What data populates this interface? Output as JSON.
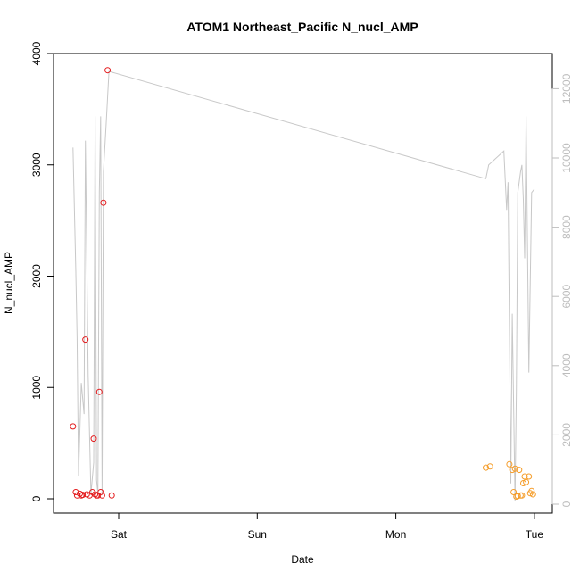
{
  "chart_data": {
    "type": "scatter",
    "title": "ATOM1 Northeast_Pacific N_nucl_AMP",
    "xlabel": "Date",
    "ylabel": "N_nucl_AMP",
    "x_ticks": [
      "Sat",
      "Sun",
      "Mon",
      "Tue"
    ],
    "x_range_days": [
      -0.4,
      3.05
    ],
    "ylim": [
      0,
      4000
    ],
    "y_ticks": [
      "0",
      "1000",
      "2000",
      "3000",
      "4000"
    ],
    "y2lim": [
      0,
      13000
    ],
    "y2_ticks": [
      "0",
      "2000",
      "4000",
      "6000",
      "8000",
      "10000",
      "12000"
    ],
    "colors": {
      "series_red": "#e31a1c",
      "series_orange": "#f59d2a",
      "secondary_line": "#c8c8c8",
      "right_axis": "#bdbdbd"
    },
    "series": [
      {
        "color": "#e31a1c",
        "x": [
          -0.33,
          -0.31,
          -0.3,
          -0.28,
          -0.27,
          -0.26,
          -0.24,
          -0.23,
          -0.21,
          -0.19,
          -0.18,
          -0.17,
          -0.16,
          -0.15,
          -0.14,
          -0.13,
          -0.12,
          -0.11,
          -0.08,
          -0.05
        ],
        "y": [
          650,
          60,
          30,
          45,
          30,
          35,
          1430,
          40,
          30,
          60,
          540,
          40,
          30,
          30,
          960,
          60,
          30,
          2660,
          3850,
          30
        ]
      },
      {
        "color": "#f59d2a",
        "x": [
          2.65,
          2.68,
          2.82,
          2.84,
          2.85,
          2.86,
          2.87,
          2.88,
          2.89,
          2.9,
          2.91,
          2.92,
          2.93,
          2.94,
          2.96,
          2.97,
          2.98,
          2.99
        ],
        "y": [
          280,
          290,
          310,
          260,
          60,
          270,
          20,
          25,
          260,
          30,
          30,
          140,
          200,
          150,
          200,
          50,
          70,
          40
        ]
      },
      {
        "color": "#c8c8c8",
        "axis": "right",
        "x": [
          -0.33,
          -0.31,
          -0.3,
          -0.29,
          -0.27,
          -0.25,
          -0.24,
          -0.22,
          -0.2,
          -0.18,
          -0.17,
          -0.16,
          -0.15,
          -0.14,
          -0.13,
          -0.12,
          -0.11,
          -0.09,
          -0.07,
          2.65,
          2.67,
          2.78,
          2.8,
          2.81,
          2.83,
          2.84,
          2.86,
          2.87,
          2.88,
          2.9,
          2.91,
          2.92,
          2.93,
          2.94,
          2.96,
          2.98,
          3.0
        ],
        "y": [
          10300,
          6800,
          4800,
          800,
          3500,
          2600,
          10500,
          3700,
          300,
          1200,
          11200,
          700,
          300,
          9000,
          11200,
          300,
          9600,
          11000,
          12500,
          9400,
          9800,
          10200,
          8500,
          9300,
          600,
          5500,
          100,
          3300,
          9000,
          9600,
          9800,
          8800,
          7100,
          11200,
          3800,
          9000,
          9100
        ]
      }
    ]
  }
}
